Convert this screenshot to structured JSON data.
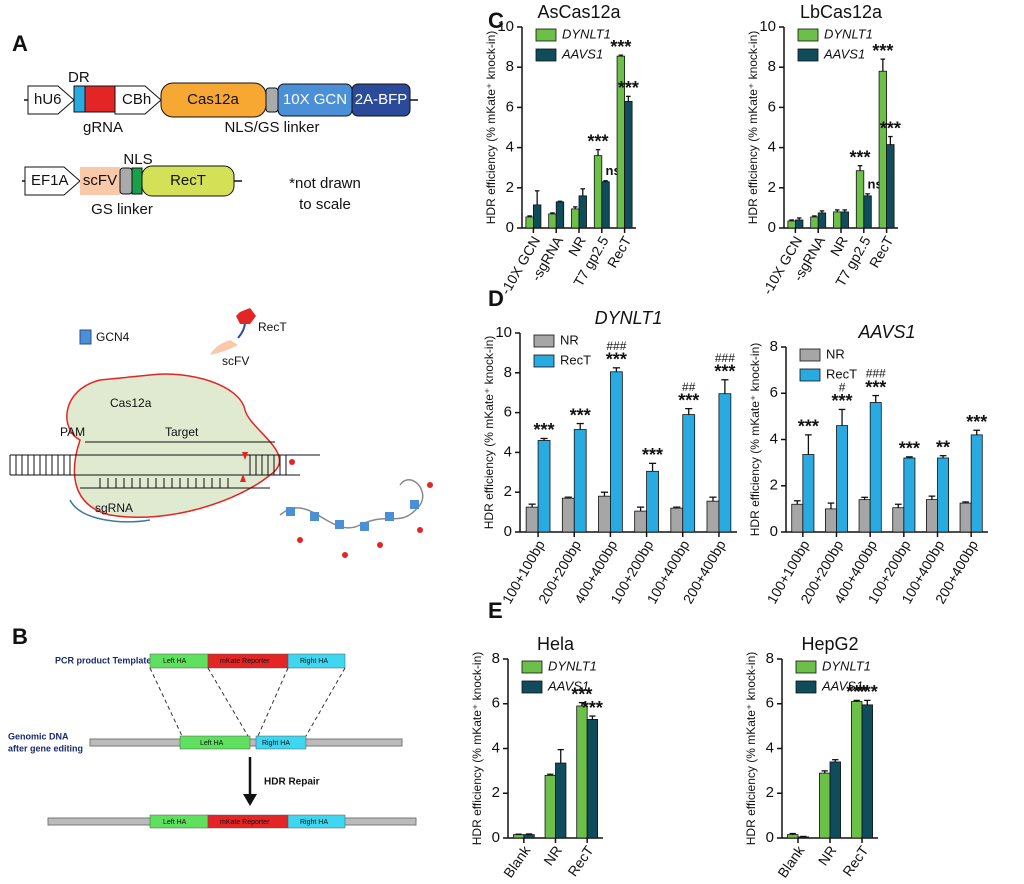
{
  "panel_labels": [
    "A",
    "B",
    "C",
    "D",
    "E"
  ],
  "diagram_a": {
    "hu6": "hU6",
    "dr": "DR",
    "grna": "gRNA",
    "cbh": "CBh",
    "cas12a": "Cas12a",
    "gcn": "10X GCN",
    "bfp": "2A-BFP",
    "nls_gs": "NLS/GS linker",
    "ef1a": "EF1A",
    "scfv": "scFV",
    "nls": "NLS",
    "rect": "RecT",
    "gs": "GS linker",
    "note": [
      "*not drawn",
      "to scale"
    ],
    "gcn4": "GCN4",
    "rect_icon": "RecT",
    "scfv_icon": "scFV",
    "cas12a_complex": "Cas12a",
    "pam": "PAM",
    "target": "Target",
    "sgrna": "sgRNA"
  },
  "diagram_b": {
    "template": "PCR product Template",
    "genomic": [
      "Genomic DNA",
      "after gene editing"
    ],
    "repair": "HDR Repair",
    "left_ha": "Left HA",
    "reporter": "mKate Reporter",
    "right_ha": "Right HA"
  },
  "chart_data": [
    {
      "type": "bar",
      "title": "AsCas12a",
      "y_label": "HDR efficiency (% mKate⁺ knock-in)",
      "categories": [
        "-10X GCN",
        "-sgRNA",
        "NR",
        "T7 gp2.5",
        "RecT"
      ],
      "series": [
        {
          "name": "DYNLT1",
          "color": "#6cc04a",
          "values": [
            0.55,
            0.7,
            0.95,
            3.6,
            8.55
          ],
          "errors": [
            0.05,
            0.05,
            0.1,
            0.3,
            0.05
          ],
          "significance": [
            null,
            null,
            null,
            "***",
            "***"
          ]
        },
        {
          "name": "AAVS1",
          "color": "#0f4c5c",
          "values": [
            1.15,
            1.3,
            1.6,
            2.3,
            6.3
          ],
          "errors": [
            0.7,
            0.03,
            0.35,
            0.05,
            0.25
          ],
          "significance": [
            null,
            null,
            null,
            "ns",
            "***"
          ]
        }
      ],
      "ylim": [
        0,
        10
      ],
      "yticks": [
        0,
        2,
        4,
        6,
        8,
        10
      ],
      "legend": "upper left"
    },
    {
      "type": "bar",
      "title": "LbCas12a",
      "y_label": "HDR efficiency (% mKate⁺ knock-in)",
      "categories": [
        "-10X GCN",
        "-sgRNA",
        "NR",
        "T7 gp2.5",
        "RecT"
      ],
      "series": [
        {
          "name": "DYNLT1",
          "color": "#6cc04a",
          "values": [
            0.35,
            0.55,
            0.8,
            2.85,
            7.8
          ],
          "errors": [
            0.05,
            0.05,
            0.1,
            0.25,
            0.6
          ],
          "significance": [
            null,
            null,
            null,
            "***",
            "***"
          ]
        },
        {
          "name": "AAVS1",
          "color": "#0f4c5c",
          "values": [
            0.4,
            0.75,
            0.8,
            1.6,
            4.15
          ],
          "errors": [
            0.1,
            0.1,
            0.1,
            0.1,
            0.4
          ],
          "significance": [
            null,
            null,
            null,
            "ns",
            "***"
          ]
        }
      ],
      "ylim": [
        0,
        10
      ],
      "yticks": [
        0,
        2,
        4,
        6,
        8,
        10
      ],
      "legend": "upper left"
    },
    {
      "type": "bar",
      "title": "DYNLT1",
      "y_label": "HDR efficiency (% mKate⁺ knock-in)",
      "categories": [
        "100+100bp",
        "200+200bp",
        "400+400bp",
        "100+200bp",
        "100+400bp",
        "200+400bp"
      ],
      "series": [
        {
          "name": "NR",
          "color": "#a6a6a6",
          "values": [
            1.25,
            1.7,
            1.8,
            1.05,
            1.2,
            1.55
          ],
          "errors": [
            0.15,
            0.05,
            0.2,
            0.2,
            0.05,
            0.2
          ]
        },
        {
          "name": "RecT",
          "color": "#29abe2",
          "values": [
            4.6,
            5.15,
            8.05,
            3.05,
            5.9,
            6.95
          ],
          "errors": [
            0.1,
            0.3,
            0.2,
            0.4,
            0.3,
            0.7
          ],
          "significance": [
            "***",
            "***",
            "***",
            "***",
            "***",
            "***"
          ],
          "comparison": [
            null,
            null,
            "###",
            null,
            "##",
            "###"
          ]
        }
      ],
      "ylim": [
        0,
        10
      ],
      "yticks": [
        0,
        2,
        4,
        6,
        8,
        10
      ],
      "legend": "upper left"
    },
    {
      "type": "bar",
      "title": "AAVS1",
      "y_label": "HDR efficiency (% mKate⁺ knock-in)",
      "categories": [
        "100+100bp",
        "200+200bp",
        "400+400bp",
        "100+200bp",
        "100+400bp",
        "200+400bp"
      ],
      "series": [
        {
          "name": "NR",
          "color": "#a6a6a6",
          "values": [
            1.2,
            1.0,
            1.4,
            1.05,
            1.4,
            1.25
          ],
          "errors": [
            0.15,
            0.25,
            0.1,
            0.15,
            0.15,
            0.05
          ]
        },
        {
          "name": "RecT",
          "color": "#29abe2",
          "values": [
            3.35,
            4.6,
            5.6,
            3.2,
            3.2,
            4.2
          ],
          "errors": [
            0.85,
            0.7,
            0.3,
            0.05,
            0.1,
            0.2
          ],
          "significance": [
            "***",
            "***",
            "***",
            "***",
            "**",
            "***"
          ],
          "comparison": [
            null,
            "#",
            "###",
            null,
            null,
            null
          ]
        }
      ],
      "ylim": [
        0,
        8
      ],
      "yticks": [
        0,
        2,
        4,
        6,
        8
      ],
      "legend": "upper left"
    },
    {
      "type": "bar",
      "title": "Hela",
      "y_label": "HDR efficiency (% mKate⁺ knock-in)",
      "categories": [
        "Blank",
        "NR",
        "RecT"
      ],
      "series": [
        {
          "name": "DYNLT1",
          "color": "#6cc04a",
          "values": [
            0.15,
            2.8,
            5.9
          ],
          "errors": [
            0.02,
            0.05,
            0.15
          ],
          "significance": [
            null,
            null,
            "***"
          ]
        },
        {
          "name": "AAVS1",
          "color": "#0f4c5c",
          "values": [
            0.15,
            3.35,
            5.3
          ],
          "errors": [
            0.03,
            0.6,
            0.15
          ],
          "significance": [
            null,
            null,
            "***"
          ]
        }
      ],
      "ylim": [
        0,
        8
      ],
      "yticks": [
        0,
        2,
        4,
        6,
        8
      ],
      "legend": "upper left"
    },
    {
      "type": "bar",
      "title": "HepG2",
      "y_label": "HDR efficiency (% mKate⁺ knock-in)",
      "categories": [
        "Blank",
        "NR",
        "RecT"
      ],
      "series": [
        {
          "name": "DYNLT1",
          "color": "#6cc04a",
          "values": [
            0.15,
            2.9,
            6.1
          ],
          "errors": [
            0.05,
            0.1,
            0.05
          ],
          "significance": [
            null,
            null,
            "***"
          ]
        },
        {
          "name": "AAVS1",
          "color": "#0f4c5c",
          "values": [
            0.05,
            3.4,
            5.95
          ],
          "errors": [
            0.02,
            0.1,
            0.2
          ],
          "significance": [
            null,
            null,
            "***"
          ]
        }
      ],
      "ylim": [
        0,
        8
      ],
      "yticks": [
        0,
        2,
        4,
        6,
        8
      ],
      "legend": "upper left"
    }
  ]
}
